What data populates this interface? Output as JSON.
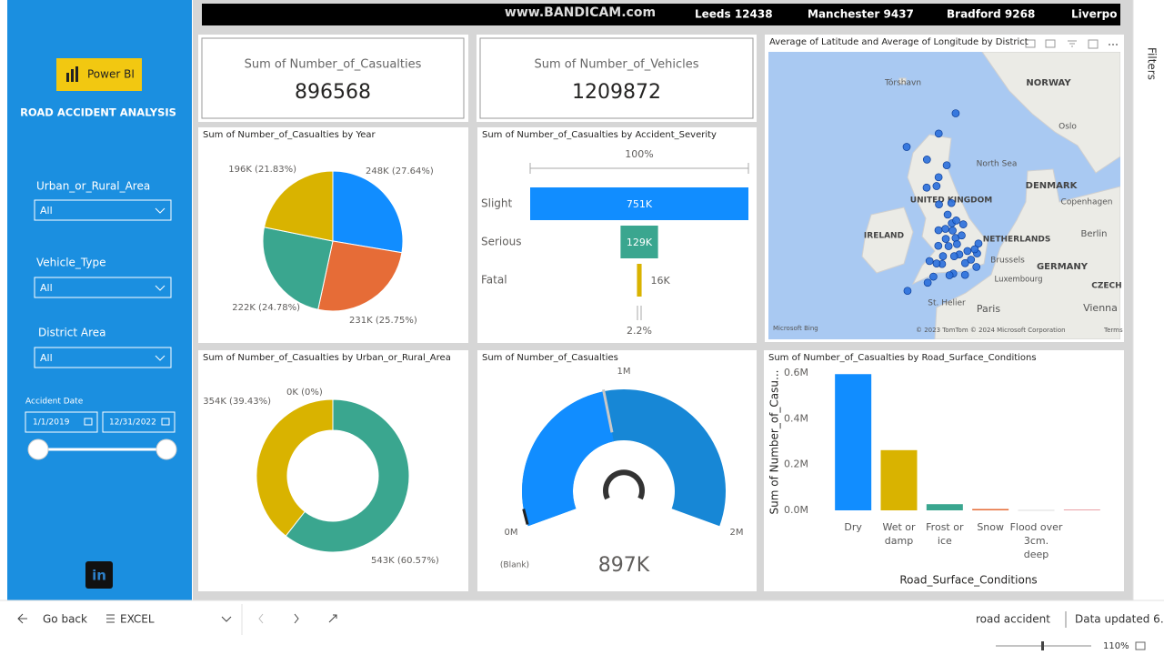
{
  "sidebar": {
    "logo": "Power BI",
    "title": "ROAD ACCIDENT ANALYSIS",
    "slicers": [
      {
        "label": "Urban_or_Rural_Area",
        "value": "All"
      },
      {
        "label": "Vehicle_Type",
        "value": "All"
      },
      {
        "label": "District Area",
        "value": "All"
      }
    ],
    "date_slicer": {
      "label": "Accident Date",
      "start": "1/1/2019",
      "end": "12/31/2022"
    }
  },
  "ticker": {
    "watermark": "www.BANDICAM.com",
    "items": [
      "Leeds 12438",
      "Manchester 9437",
      "Bradford 9268",
      "Liverpo"
    ]
  },
  "cards": [
    {
      "label": "Sum of Number_of_Casualties",
      "value": 896568
    },
    {
      "label": "Sum of Number_of_Vehicles",
      "value": 1209872
    }
  ],
  "chart_data": [
    {
      "type": "pie",
      "title": "Sum of Number_of_Casualties by Year",
      "values": [
        27.64,
        25.75,
        24.78,
        21.83
      ],
      "value_labels": [
        "248K (27.64%)",
        "231K (25.75%)",
        "222K (24.78%)",
        "196K (21.83%)"
      ],
      "colors": [
        "#118dff",
        "#e66c37",
        "#3aa68f",
        "#d9b300"
      ]
    },
    {
      "type": "funnel",
      "title": "Sum of Number_of_Casualties by Accident_Severity",
      "categories": [
        "Slight",
        "Serious",
        "Fatal"
      ],
      "values": [
        751000,
        129000,
        16000
      ],
      "value_labels": [
        "751K",
        "129K",
        "16K"
      ],
      "colors": [
        "#118dff",
        "#3aa68f",
        "#d9b300"
      ],
      "top_label": "100%",
      "bottom_label": "2.2%"
    },
    {
      "type": "donut",
      "title": "Sum of Number_of_Casualties by Urban_or_Rural_Area",
      "values": [
        60.57,
        39.43,
        0
      ],
      "value_labels": [
        "543K (60.57%)",
        "354K (39.43%)",
        "0K (0%)"
      ],
      "colors": [
        "#3aa68f",
        "#d9b300",
        "#e66c37"
      ]
    },
    {
      "type": "gauge",
      "title": "Sum of Number_of_Casualties",
      "value": 896568,
      "value_label": "897K",
      "ylim": [
        0,
        2000000
      ],
      "yticks": [
        {
          "value": 0,
          "label": "0M"
        },
        {
          "value": 1000000,
          "label": "1M"
        },
        {
          "value": 2000000,
          "label": "2M"
        }
      ],
      "blank_label": "(Blank)",
      "color": "#118dff"
    },
    {
      "type": "bar",
      "title": "Sum of Number_of_Casualties by Road_Surface_Conditions",
      "categories": [
        "Dry",
        "Wet or damp",
        "Frost or ice",
        "Snow",
        "Flood over 3cm. deep",
        null
      ],
      "values": [
        595000,
        263000,
        27000,
        6000,
        1000,
        2000
      ],
      "colors": [
        "#118dff",
        "#d9b300",
        "#3aa68f",
        "#e66c37",
        "#b8b8b8",
        "#d64550"
      ],
      "ylim": [
        0,
        600000
      ],
      "yticks": [
        {
          "value": 0,
          "label": "0.0M"
        },
        {
          "value": 200000,
          "label": "0.2M"
        },
        {
          "value": 400000,
          "label": "0.4M"
        },
        {
          "value": 600000,
          "label": "0.6M"
        }
      ],
      "xlabel": "Road_Surface_Conditions",
      "ylabel": "Sum of Number_of_Casu...",
      "grid": false
    },
    {
      "type": "map",
      "title": "Average of Latitude and Average of Longitude by District",
      "x": [
        -0.13,
        -1.9,
        -2.24,
        -1.55,
        -2.98,
        -2.6,
        -1.6,
        -1.47,
        -1.15,
        -3.18,
        -4.25,
        -3.19,
        -2.1,
        -4.22,
        -4.14,
        1.3,
        0.12,
        -0.14,
        -1.4,
        -3.53,
        -0.33,
        -1.08,
        -2.93,
        -2.97,
        -3.94,
        1.15,
        -1.14,
        -6.39,
        -2.96,
        -6.3,
        1.08,
        -0.75,
        -2.2,
        -1.3,
        0.5,
        -2.0,
        -3.0,
        -1.0,
        -0.5,
        -2.5,
        -1.8,
        0.9
      ],
      "values": [
        51.5,
        52.48,
        53.48,
        53.8,
        53.4,
        51.45,
        54.97,
        53.38,
        52.95,
        51.48,
        55.86,
        55.95,
        57.15,
        57.48,
        50.37,
        52.63,
        52.2,
        50.82,
        50.9,
        50.72,
        53.74,
        53.96,
        54.89,
        56.46,
        51.62,
        52.06,
        60.15,
        58.21,
        58.98,
        49.9,
        51.28,
        52.0,
        52.9,
        51.9,
        51.7,
        54.3,
        52.5,
        52.6,
        53.1,
        51.9,
        50.8,
        52.3
      ],
      "xlim": [
        -21.2,
        16.5
      ],
      "ylim": [
        47.1,
        63.7
      ],
      "color": "#2a6fdb",
      "labels": [
        "Tórshavn",
        "NORWAY",
        "Oslo",
        "North Sea",
        "DENMARK",
        "Copenhagen",
        "UNITED KINGDOM",
        "IRELAND",
        "NETHERLANDS",
        "Berlin",
        "Brussels",
        "GERMANY",
        "Luxembourg",
        "CZECH",
        "St. Helier",
        "Paris",
        "Vienna"
      ],
      "attribution": [
        "Microsoft Bing",
        "© 2023 TomTom © 2024 Microsoft Corporation",
        "Terms"
      ]
    }
  ],
  "footer": {
    "back": "Go back",
    "page": "EXCEL",
    "report": "road accident",
    "status": "Data updated 6...",
    "zoom": "110%",
    "filters": "Filters"
  }
}
